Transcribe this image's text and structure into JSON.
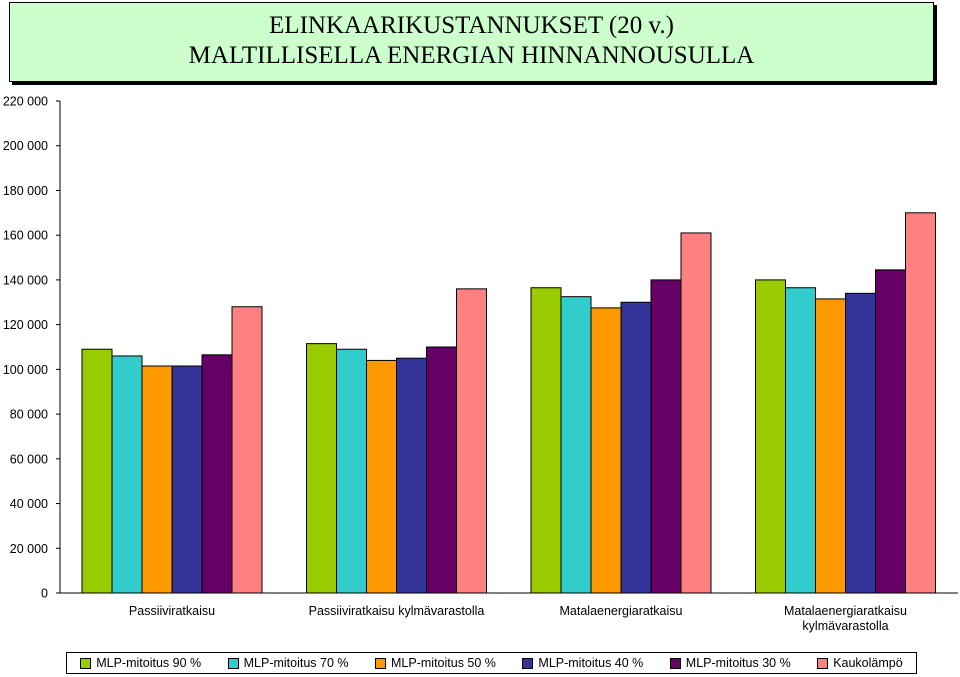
{
  "chart_data": {
    "type": "bar",
    "title_lines": [
      "ELINKAARIKUSTANNUKSET (20 v.)",
      "MALTILLISELLA ENERGIAN HINNANNOUSULLA"
    ],
    "categories": [
      [
        "Passiiviratkaisu"
      ],
      [
        "Passiiviratkaisu kylmävarastolla"
      ],
      [
        "Matalaenergiaratkaisu"
      ],
      [
        "Matalaenergiaratkaisu",
        "kylmävarastolla"
      ]
    ],
    "series": [
      {
        "name": "MLP-mitoitus 90 %",
        "color": "#99cc00",
        "values": [
          109000,
          111500,
          136500,
          140000
        ]
      },
      {
        "name": "MLP-mitoitus 70 %",
        "color": "#33cccc",
        "values": [
          106000,
          109000,
          132500,
          136500
        ]
      },
      {
        "name": "MLP-mitoitus 50 %",
        "color": "#ff9900",
        "values": [
          101500,
          104000,
          127500,
          131500
        ]
      },
      {
        "name": "MLP-mitoitus 40 %",
        "color": "#333399",
        "values": [
          101500,
          105000,
          130000,
          134000
        ]
      },
      {
        "name": "MLP-mitoitus 30 %",
        "color": "#660066",
        "values": [
          106500,
          110000,
          140000,
          144500
        ]
      },
      {
        "name": "Kaukolämpö",
        "color": "#ff8080",
        "values": [
          128000,
          136000,
          161000,
          170000
        ]
      }
    ],
    "yticks": [
      "0",
      "20 000",
      "40 000",
      "60 000",
      "80 000",
      "100 000",
      "120 000",
      "140 000",
      "160 000",
      "180 000",
      "200 000",
      "220 000"
    ],
    "ylim": [
      0,
      220000
    ],
    "grid": false,
    "legend_position": "bottom"
  }
}
